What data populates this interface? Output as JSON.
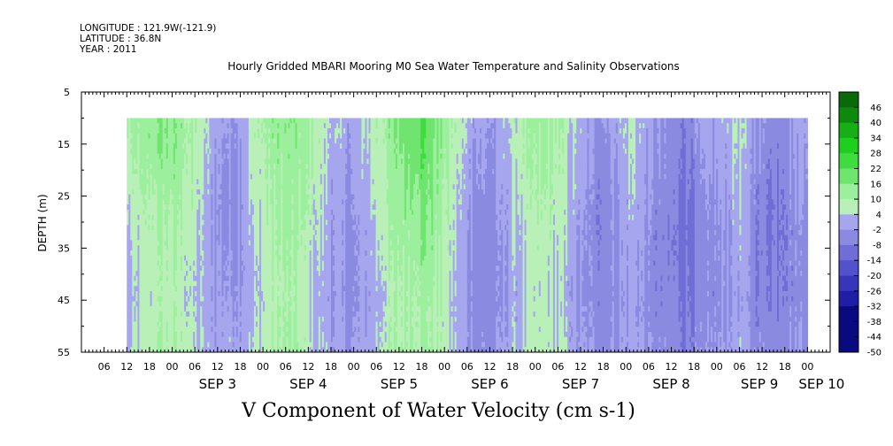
{
  "header": {
    "longitude": "LONGITUDE : 121.9W(-121.9)",
    "latitude": "LATITUDE : 36.8N",
    "year": "YEAR : 2011"
  },
  "chart_data": {
    "type": "heatmap",
    "title": "Hourly Gridded MBARI Mooring M0 Sea Water Temperature and Salinity Observations",
    "xlabel": "V Component of Water Velocity (cm s-1)",
    "ylabel": "DEPTH (m)",
    "x_start": "2011-09-02 12:00",
    "x_end": "2011-09-10 00:00",
    "x_range_display": [
      "2011-09-02 00:00",
      "2011-09-10 06:00"
    ],
    "x_hour_tick_labels": [
      "06",
      "12",
      "18",
      "00",
      "06",
      "12",
      "18",
      "00",
      "06",
      "12",
      "18",
      "00",
      "06",
      "12",
      "18",
      "00",
      "06",
      "12",
      "18",
      "00",
      "06",
      "12",
      "18",
      "00",
      "06",
      "12",
      "18",
      "00",
      "06",
      "12",
      "18",
      "00"
    ],
    "x_day_labels": [
      "SEP  3",
      "SEP  4",
      "SEP  5",
      "SEP  6",
      "SEP  7",
      "SEP  8",
      "SEP  9",
      "SEP 10"
    ],
    "ylim": [
      5,
      55
    ],
    "y_inverted": true,
    "y_ticks": [
      5,
      15,
      25,
      35,
      45,
      55
    ],
    "depth_data_range": [
      10,
      55
    ],
    "colorbar": {
      "min": -50,
      "max": 50,
      "step": 6,
      "tick_labels": [
        "46",
        "40",
        "34",
        "28",
        "22",
        "16",
        "10",
        "4",
        "-2",
        "-8",
        "-14",
        "-20",
        "-26",
        "-32",
        "-38",
        "-44",
        "-50"
      ],
      "negative_color": "#a6a6ee",
      "near_zero_positive": "#b8f0b8",
      "positive_colors": [
        "#9cef9c",
        "#6fe56f",
        "#3fdc3f",
        "#1fcf1f",
        "#16b016",
        "#0d8a0d",
        "#0a6a0a"
      ],
      "negative_colors": [
        "#a6a6ee",
        "#8a8ae0",
        "#6e6ed6",
        "#5252cc",
        "#3636bb",
        "#1e1ea6",
        "#0a0a80"
      ]
    },
    "coarse_pattern": {
      "description_values_cm_s": [
        [
          6,
          9,
          12,
          10,
          4,
          -3,
          -6,
          2,
          8,
          11,
          9,
          4,
          -2,
          -4,
          3,
          9,
          16,
          18,
          10,
          2,
          -4,
          -6,
          2,
          6,
          8,
          4,
          -3,
          -7,
          -3,
          2,
          -5,
          -8,
          -10,
          -6,
          -3,
          2,
          -6,
          -9,
          -5,
          -2
        ],
        [
          4,
          8,
          11,
          9,
          3,
          -4,
          -7,
          1,
          7,
          10,
          8,
          3,
          -3,
          -5,
          2,
          8,
          15,
          17,
          9,
          1,
          -5,
          -7,
          1,
          5,
          7,
          3,
          -4,
          -8,
          -4,
          1,
          -6,
          -9,
          -11,
          -7,
          -4,
          1,
          -7,
          -10,
          -6,
          -3
        ],
        [
          2,
          6,
          9,
          8,
          2,
          -5,
          -8,
          0,
          6,
          9,
          7,
          2,
          -4,
          -6,
          1,
          7,
          13,
          16,
          8,
          0,
          -6,
          -8,
          0,
          4,
          6,
          2,
          -5,
          -9,
          -5,
          0,
          -7,
          -10,
          -12,
          -8,
          -5,
          0,
          -8,
          -11,
          -7,
          -4
        ],
        [
          0,
          4,
          7,
          6,
          1,
          -6,
          -8,
          -1,
          5,
          8,
          6,
          1,
          -5,
          -7,
          0,
          6,
          11,
          14,
          7,
          -1,
          -7,
          -9,
          -1,
          3,
          5,
          1,
          -6,
          -10,
          -6,
          -1,
          -8,
          -11,
          -13,
          -9,
          -6,
          -1,
          -9,
          -12,
          -8,
          -5
        ],
        [
          -2,
          3,
          6,
          5,
          0,
          -6,
          -7,
          -2,
          4,
          7,
          5,
          0,
          -6,
          -8,
          -1,
          5,
          9,
          12,
          6,
          -2,
          -8,
          -10,
          -2,
          2,
          4,
          0,
          -7,
          -10,
          -7,
          -2,
          -9,
          -12,
          -14,
          -10,
          -7,
          -2,
          -10,
          -12,
          -9,
          -6
        ],
        [
          -3,
          2,
          5,
          4,
          -1,
          -5,
          -6,
          -3,
          3,
          6,
          4,
          -1,
          -6,
          -8,
          -2,
          4,
          8,
          10,
          5,
          -3,
          -8,
          -10,
          -3,
          1,
          3,
          -1,
          -7,
          -9,
          -7,
          -3,
          -9,
          -11,
          -13,
          -10,
          -7,
          -3,
          -10,
          -11,
          -9,
          -6
        ],
        [
          -4,
          1,
          4,
          3,
          -2,
          -5,
          -5,
          -3,
          2,
          5,
          3,
          -2,
          -7,
          -8,
          -3,
          3,
          7,
          9,
          4,
          -4,
          -9,
          -10,
          -4,
          0,
          2,
          -2,
          -8,
          -9,
          -8,
          -4,
          -10,
          -11,
          -12,
          -10,
          -8,
          -4,
          -10,
          -10,
          -9,
          -7
        ],
        [
          -3,
          2,
          5,
          4,
          -1,
          -4,
          -4,
          -2,
          3,
          6,
          4,
          -1,
          -6,
          -7,
          -2,
          4,
          6,
          8,
          3,
          -3,
          -8,
          -9,
          -3,
          1,
          3,
          -1,
          -7,
          -8,
          -7,
          -3,
          -9,
          -10,
          -11,
          -9,
          -7,
          -3,
          -9,
          -9,
          -8,
          -6
        ],
        [
          -2,
          3,
          6,
          5,
          0,
          -3,
          -3,
          -1,
          4,
          7,
          5,
          0,
          -5,
          -6,
          -1,
          5,
          7,
          8,
          4,
          -2,
          -7,
          -8,
          -2,
          2,
          4,
          0,
          -6,
          -7,
          -6,
          -2,
          -8,
          -9,
          -10,
          -8,
          -6,
          -2,
          -8,
          -8,
          -7,
          -5
        ]
      ],
      "cols_span": [
        "2011-09-02 12:00",
        "2011-09-10 00:00"
      ],
      "rows_span_depth_m": [
        10,
        55
      ]
    }
  }
}
